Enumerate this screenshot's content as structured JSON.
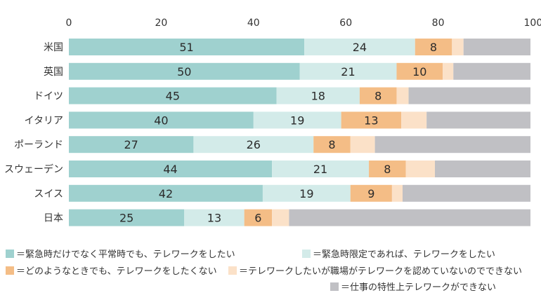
{
  "colors": {
    "series": [
      "#9fd1cf",
      "#d3ebe9",
      "#f4bd86",
      "#fbe1c8",
      "#c0c0c4"
    ],
    "axis_text": "#333333"
  },
  "chart_data": {
    "type": "bar",
    "orientation": "horizontal",
    "stacked": true,
    "title": "",
    "xlabel": "",
    "ylabel": "",
    "xlim": [
      0,
      100
    ],
    "x_ticks": [
      "0",
      "20",
      "40",
      "60",
      "80",
      "100(%)"
    ],
    "x_tick_values": [
      0,
      20,
      40,
      60,
      80,
      100
    ],
    "grid": false,
    "legend_position": "bottom",
    "categories": [
      "米国",
      "英国",
      "ドイツ",
      "イタリア",
      "ポーランド",
      "スウェーデン",
      "スイス",
      "日本"
    ],
    "series": [
      {
        "name": "＝緊急時だけでなく平常時でも、テレワークをしたい",
        "values": [
          51,
          50,
          45,
          40,
          27,
          44,
          42,
          25
        ],
        "labels": [
          "51",
          "50",
          "45",
          "40",
          "27",
          "44",
          "42",
          "25"
        ]
      },
      {
        "name": "＝緊急時限定であれば、テレワークをしたい",
        "values": [
          24,
          21,
          18,
          19,
          26,
          21,
          19,
          13
        ],
        "labels": [
          "24",
          "21",
          "18",
          "19",
          "26",
          "21",
          "19",
          "13"
        ]
      },
      {
        "name": "＝どのようなときでも、テレワークをしたくない",
        "values": [
          8,
          10,
          8,
          13,
          8,
          8,
          9,
          6
        ],
        "labels": [
          "8",
          "10",
          "8",
          "13",
          "8",
          "8",
          "9",
          "6"
        ]
      },
      {
        "name": "＝テレワークしたいが職場がテレワークを認めていないのでできない",
        "values": [
          2.5,
          2.3,
          2.6,
          5.5,
          5.3,
          6.3,
          2.3,
          3.7
        ],
        "labels": []
      },
      {
        "name": "＝仕事の特性上テレワークができない",
        "values": [
          14.5,
          16.7,
          26.4,
          22.5,
          33.7,
          20.7,
          27.7,
          52.3
        ],
        "labels": []
      }
    ]
  }
}
